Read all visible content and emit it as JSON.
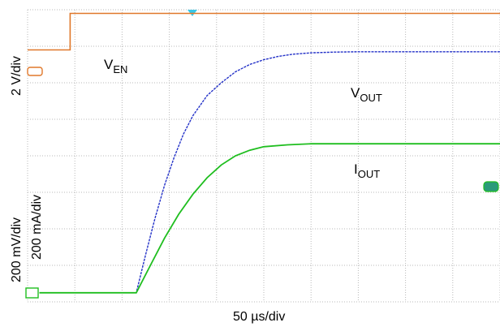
{
  "colors": {
    "background": "#ffffff",
    "grid": "#b8b8b8",
    "ven": "#e0782a",
    "vout": "#2432c8",
    "iout": "#1fbe1f",
    "trigger": "#38c8e8"
  },
  "labels": {
    "ven": {
      "main": "V",
      "sub": "EN"
    },
    "vout": {
      "main": "V",
      "sub": "OUT"
    },
    "iout": {
      "main": "I",
      "sub": "OUT"
    },
    "ven_scale": "2 V/div",
    "vout_scale": "200 mV/div",
    "iout_scale": "200 mA/div",
    "time_scale": "50 µs/div"
  },
  "chart_data": {
    "type": "line",
    "title": "",
    "xlabel": "50 µs/div",
    "ylabel": "",
    "grid": true,
    "x_unit": "division",
    "y_unit": "division",
    "xlim": [
      0,
      10
    ],
    "ylim": [
      0,
      8
    ],
    "series": [
      {
        "name": "VEN",
        "x": [
          0,
          0.9,
          0.9,
          10
        ],
        "y": [
          6.9,
          6.9,
          7.9,
          7.9
        ]
      },
      {
        "name": "VOUT",
        "x": [
          0.25,
          1.5,
          2.3,
          2.5,
          2.7,
          2.9,
          3.1,
          3.3,
          3.5,
          3.8,
          4.1,
          4.4,
          4.7,
          5.0,
          5.3,
          5.6,
          6.0,
          6.5,
          7.0,
          8.0,
          10.0
        ],
        "y": [
          0.25,
          0.25,
          0.25,
          1.3,
          2.3,
          3.2,
          3.95,
          4.6,
          5.1,
          5.65,
          6.0,
          6.3,
          6.5,
          6.63,
          6.72,
          6.78,
          6.82,
          6.84,
          6.85,
          6.85,
          6.85
        ]
      },
      {
        "name": "IOUT",
        "x": [
          0.25,
          1.5,
          2.3,
          2.6,
          2.9,
          3.2,
          3.5,
          3.8,
          4.1,
          4.4,
          4.7,
          5.0,
          5.5,
          6.0,
          7.0,
          8.0,
          10.0
        ],
        "y": [
          0.25,
          0.25,
          0.25,
          1.0,
          1.75,
          2.4,
          2.95,
          3.4,
          3.75,
          4.0,
          4.15,
          4.25,
          4.3,
          4.33,
          4.33,
          4.33,
          4.33
        ]
      }
    ],
    "annotations": [
      "VEN",
      "VOUT",
      "IOUT",
      "2 V/div",
      "200 mV/div",
      "200 mA/div",
      "50 µs/div"
    ]
  }
}
